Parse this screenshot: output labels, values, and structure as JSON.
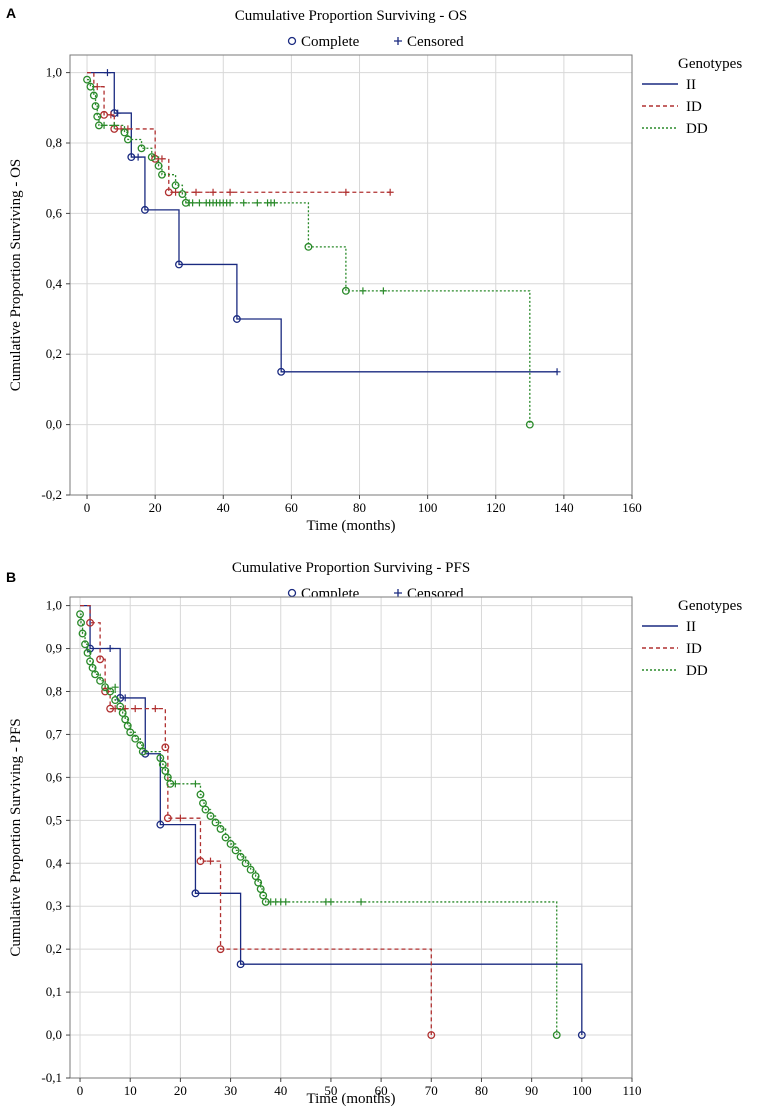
{
  "chart_data": [
    {
      "panel": "A",
      "type": "line",
      "subtype": "kaplan-meier",
      "title": "Cumulative Proportion Surviving - OS",
      "xlabel": "Time (months)",
      "ylabel": "Cumulative Proportion Surviving - OS",
      "xlim": [
        -5,
        160
      ],
      "ylim": [
        -0.2,
        1.05
      ],
      "xticks": [
        0,
        20,
        40,
        60,
        80,
        100,
        120,
        140,
        160
      ],
      "yticks": [
        -0.2,
        0.0,
        0.2,
        0.4,
        0.6,
        0.8,
        1.0
      ],
      "ytick_labels": [
        "-0,2",
        "0,0",
        "0,2",
        "0,4",
        "0,6",
        "0,8",
        "1,0"
      ],
      "grid": true,
      "marker_legend": {
        "complete": "Complete",
        "censored": "Censored"
      },
      "legend_title": "Genotypes",
      "legend_position": "right",
      "series": [
        {
          "name": "II",
          "color": "#1a2a80",
          "dash": "solid",
          "steps": [
            [
              0,
              1.0
            ],
            [
              8,
              0.885
            ],
            [
              13,
              0.76
            ],
            [
              17,
              0.61
            ],
            [
              27,
              0.455
            ],
            [
              44,
              0.3
            ],
            [
              57,
              0.15
            ],
            [
              138,
              0.15
            ]
          ],
          "events": [
            [
              8,
              0.885
            ],
            [
              13,
              0.76
            ],
            [
              17,
              0.61
            ],
            [
              27,
              0.455
            ],
            [
              44,
              0.3
            ],
            [
              57,
              0.15
            ]
          ],
          "censored": [
            [
              6,
              1.0
            ],
            [
              9,
              0.885
            ],
            [
              15,
              0.76
            ],
            [
              138,
              0.15
            ]
          ]
        },
        {
          "name": "ID",
          "color": "#b03030",
          "dash": "4,3",
          "steps": [
            [
              0,
              1.0
            ],
            [
              2,
              0.96
            ],
            [
              5,
              0.88
            ],
            [
              8,
              0.84
            ],
            [
              20,
              0.755
            ],
            [
              24,
              0.66
            ],
            [
              89,
              0.66
            ]
          ],
          "events": [
            [
              5,
              0.88
            ],
            [
              8,
              0.84
            ],
            [
              20,
              0.755
            ],
            [
              24,
              0.66
            ]
          ],
          "censored": [
            [
              3,
              0.96
            ],
            [
              7,
              0.88
            ],
            [
              10,
              0.84
            ],
            [
              12,
              0.84
            ],
            [
              22,
              0.755
            ],
            [
              26,
              0.66
            ],
            [
              32,
              0.66
            ],
            [
              37,
              0.66
            ],
            [
              42,
              0.66
            ],
            [
              76,
              0.66
            ],
            [
              89,
              0.66
            ]
          ]
        },
        {
          "name": "DD",
          "color": "#2a8a2a",
          "dash": "2,2",
          "steps": [
            [
              0,
              0.98
            ],
            [
              1,
              0.96
            ],
            [
              2,
              0.935
            ],
            [
              2.5,
              0.905
            ],
            [
              3,
              0.875
            ],
            [
              3.5,
              0.85
            ],
            [
              11,
              0.83
            ],
            [
              12,
              0.81
            ],
            [
              16,
              0.785
            ],
            [
              19,
              0.76
            ],
            [
              21,
              0.735
            ],
            [
              22,
              0.71
            ],
            [
              26,
              0.68
            ],
            [
              28,
              0.655
            ],
            [
              29,
              0.63
            ],
            [
              65,
              0.505
            ],
            [
              76,
              0.38
            ],
            [
              130,
              0.0
            ]
          ],
          "events": [
            [
              0,
              0.98
            ],
            [
              1,
              0.96
            ],
            [
              2,
              0.935
            ],
            [
              2.5,
              0.905
            ],
            [
              3,
              0.875
            ],
            [
              3.5,
              0.85
            ],
            [
              11,
              0.83
            ],
            [
              12,
              0.81
            ],
            [
              16,
              0.785
            ],
            [
              19,
              0.76
            ],
            [
              21,
              0.735
            ],
            [
              22,
              0.71
            ],
            [
              26,
              0.68
            ],
            [
              28,
              0.655
            ],
            [
              29,
              0.63
            ],
            [
              65,
              0.505
            ],
            [
              76,
              0.38
            ],
            [
              130,
              0.0
            ]
          ],
          "censored": [
            [
              5,
              0.85
            ],
            [
              8,
              0.85
            ],
            [
              30,
              0.63
            ],
            [
              31,
              0.63
            ],
            [
              33,
              0.63
            ],
            [
              35,
              0.63
            ],
            [
              36,
              0.63
            ],
            [
              37,
              0.63
            ],
            [
              38,
              0.63
            ],
            [
              39,
              0.63
            ],
            [
              40,
              0.63
            ],
            [
              41,
              0.63
            ],
            [
              42,
              0.63
            ],
            [
              46,
              0.63
            ],
            [
              50,
              0.63
            ],
            [
              53,
              0.63
            ],
            [
              54,
              0.63
            ],
            [
              55,
              0.63
            ],
            [
              81,
              0.38
            ],
            [
              87,
              0.38
            ]
          ]
        }
      ]
    },
    {
      "panel": "B",
      "type": "line",
      "subtype": "kaplan-meier",
      "title": "Cumulative Proportion Surviving - PFS",
      "xlabel": "Time (months)",
      "ylabel": "Cumulative Proportion Surviving - PFS",
      "xlim": [
        -2,
        110
      ],
      "ylim": [
        -0.1,
        1.02
      ],
      "xticks": [
        0,
        10,
        20,
        30,
        40,
        50,
        60,
        70,
        80,
        90,
        100,
        110
      ],
      "yticks": [
        -0.1,
        0.0,
        0.1,
        0.2,
        0.3,
        0.4,
        0.5,
        0.6,
        0.7,
        0.8,
        0.9,
        1.0
      ],
      "ytick_labels": [
        "-0,1",
        "0,0",
        "0,1",
        "0,2",
        "0,3",
        "0,4",
        "0,5",
        "0,6",
        "0,7",
        "0,8",
        "0,9",
        "1,0"
      ],
      "grid": true,
      "marker_legend": {
        "complete": "Complete",
        "censored": "Censored"
      },
      "legend_title": "Genotypes",
      "legend_position": "right",
      "series": [
        {
          "name": "II",
          "color": "#1a2a80",
          "dash": "solid",
          "steps": [
            [
              0,
              1.0
            ],
            [
              2,
              0.9
            ],
            [
              8,
              0.785
            ],
            [
              13,
              0.655
            ],
            [
              16,
              0.49
            ],
            [
              23,
              0.33
            ],
            [
              32,
              0.165
            ],
            [
              100,
              0.0
            ]
          ],
          "events": [
            [
              2,
              0.9
            ],
            [
              8,
              0.785
            ],
            [
              13,
              0.655
            ],
            [
              16,
              0.49
            ],
            [
              23,
              0.33
            ],
            [
              32,
              0.165
            ],
            [
              100,
              0.0
            ]
          ],
          "censored": [
            [
              6,
              0.9
            ],
            [
              9,
              0.785
            ]
          ]
        },
        {
          "name": "ID",
          "color": "#b03030",
          "dash": "4,3",
          "steps": [
            [
              0,
              1.0
            ],
            [
              2,
              0.96
            ],
            [
              4,
              0.875
            ],
            [
              5,
              0.8
            ],
            [
              6,
              0.76
            ],
            [
              17,
              0.67
            ],
            [
              17.5,
              0.505
            ],
            [
              24,
              0.405
            ],
            [
              28,
              0.2
            ],
            [
              70,
              0.0
            ]
          ],
          "events": [
            [
              2,
              0.96
            ],
            [
              4,
              0.875
            ],
            [
              5,
              0.8
            ],
            [
              6,
              0.76
            ],
            [
              17,
              0.67
            ],
            [
              17.5,
              0.505
            ],
            [
              24,
              0.405
            ],
            [
              28,
              0.2
            ],
            [
              70,
              0.0
            ]
          ],
          "censored": [
            [
              7,
              0.76
            ],
            [
              9,
              0.76
            ],
            [
              11,
              0.76
            ],
            [
              15,
              0.76
            ],
            [
              20,
              0.505
            ],
            [
              26,
              0.405
            ]
          ]
        },
        {
          "name": "DD",
          "color": "#2a8a2a",
          "dash": "2,2",
          "steps": [
            [
              0,
              0.98
            ],
            [
              0.2,
              0.96
            ],
            [
              0.5,
              0.935
            ],
            [
              1,
              0.91
            ],
            [
              1.5,
              0.89
            ],
            [
              2,
              0.87
            ],
            [
              2.5,
              0.855
            ],
            [
              3,
              0.84
            ],
            [
              4,
              0.825
            ],
            [
              5,
              0.81
            ],
            [
              6,
              0.8
            ],
            [
              7,
              0.78
            ],
            [
              8,
              0.765
            ],
            [
              8.5,
              0.75
            ],
            [
              9,
              0.735
            ],
            [
              9.5,
              0.72
            ],
            [
              10,
              0.705
            ],
            [
              11,
              0.69
            ],
            [
              12,
              0.675
            ],
            [
              12.5,
              0.66
            ],
            [
              16,
              0.645
            ],
            [
              16.5,
              0.63
            ],
            [
              17,
              0.615
            ],
            [
              17.5,
              0.6
            ],
            [
              18,
              0.585
            ],
            [
              24,
              0.56
            ],
            [
              24.5,
              0.54
            ],
            [
              25,
              0.525
            ],
            [
              26,
              0.51
            ],
            [
              27,
              0.495
            ],
            [
              28,
              0.48
            ],
            [
              29,
              0.46
            ],
            [
              30,
              0.445
            ],
            [
              31,
              0.43
            ],
            [
              32,
              0.415
            ],
            [
              33,
              0.4
            ],
            [
              34,
              0.385
            ],
            [
              35,
              0.37
            ],
            [
              35.5,
              0.355
            ],
            [
              36,
              0.34
            ],
            [
              36.5,
              0.325
            ],
            [
              37,
              0.31
            ],
            [
              95,
              0.0
            ]
          ],
          "events": [
            [
              0,
              0.98
            ],
            [
              0.2,
              0.96
            ],
            [
              0.5,
              0.935
            ],
            [
              1,
              0.91
            ],
            [
              1.5,
              0.89
            ],
            [
              2,
              0.87
            ],
            [
              2.5,
              0.855
            ],
            [
              3,
              0.84
            ],
            [
              4,
              0.825
            ],
            [
              5,
              0.81
            ],
            [
              6,
              0.8
            ],
            [
              7,
              0.78
            ],
            [
              8,
              0.765
            ],
            [
              8.5,
              0.75
            ],
            [
              9,
              0.735
            ],
            [
              9.5,
              0.72
            ],
            [
              10,
              0.705
            ],
            [
              11,
              0.69
            ],
            [
              12,
              0.675
            ],
            [
              12.5,
              0.66
            ],
            [
              16,
              0.645
            ],
            [
              16.5,
              0.63
            ],
            [
              17,
              0.615
            ],
            [
              17.5,
              0.6
            ],
            [
              18,
              0.585
            ],
            [
              24,
              0.56
            ],
            [
              24.5,
              0.54
            ],
            [
              25,
              0.525
            ],
            [
              26,
              0.51
            ],
            [
              27,
              0.495
            ],
            [
              28,
              0.48
            ],
            [
              29,
              0.46
            ],
            [
              30,
              0.445
            ],
            [
              31,
              0.43
            ],
            [
              32,
              0.415
            ],
            [
              33,
              0.4
            ],
            [
              34,
              0.385
            ],
            [
              35,
              0.37
            ],
            [
              35.5,
              0.355
            ],
            [
              36,
              0.34
            ],
            [
              36.5,
              0.325
            ],
            [
              37,
              0.31
            ],
            [
              95,
              0.0
            ]
          ],
          "censored": [
            [
              7,
              0.81
            ],
            [
              19,
              0.585
            ],
            [
              23,
              0.585
            ],
            [
              38,
              0.31
            ],
            [
              39,
              0.31
            ],
            [
              40,
              0.31
            ],
            [
              41,
              0.31
            ],
            [
              49,
              0.31
            ],
            [
              50,
              0.31
            ],
            [
              56,
              0.31
            ]
          ]
        }
      ]
    }
  ]
}
